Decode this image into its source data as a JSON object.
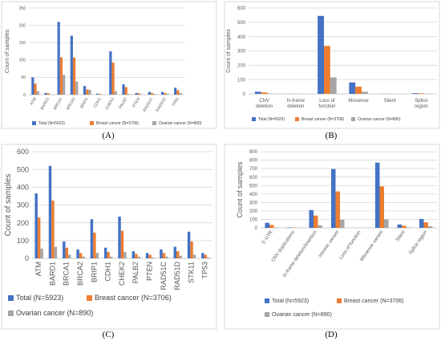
{
  "colors": {
    "total": "#4472C4",
    "breast": "#ED7D31",
    "ovarian": "#A5A5A5"
  },
  "chart_data": [
    {
      "id": "A",
      "type": "bar",
      "caption": "(A)",
      "ylabel": "Count of samples",
      "ylim": [
        0,
        250
      ],
      "yticks": [
        0,
        50,
        100,
        150,
        200,
        250
      ],
      "grid": true,
      "legend_placement": "bottom",
      "categories": [
        "ATM",
        "BARD1",
        "BRCA1",
        "BRCA2",
        "BRIP1",
        "CDH1",
        "CHEK2",
        "PALB2",
        "PTEN",
        "RAD51C",
        "RAD51D",
        "TP53"
      ],
      "series": [
        {
          "name": "Total (N=5923)",
          "values": [
            50,
            5,
            210,
            170,
            25,
            3,
            125,
            30,
            5,
            8,
            8,
            20
          ]
        },
        {
          "name": "Breast cancer (N=3706)",
          "values": [
            32,
            4,
            108,
            107,
            15,
            2,
            93,
            22,
            4,
            5,
            5,
            13
          ]
        },
        {
          "name": "Ovarian cancer (N=890)",
          "values": [
            10,
            1,
            57,
            38,
            14,
            0,
            10,
            2,
            1,
            2,
            3,
            5
          ]
        }
      ]
    },
    {
      "id": "B",
      "type": "bar",
      "caption": "(B)",
      "ylabel": "Count of samples",
      "ylim": [
        0,
        600
      ],
      "yticks": [
        0,
        100,
        200,
        300,
        400,
        500,
        600
      ],
      "grid": true,
      "legend_placement": "bottom",
      "categories": [
        "CNV deletion",
        "In-frame deletion",
        "Loss of function",
        "Missense",
        "Silent",
        "Splice region"
      ],
      "series": [
        {
          "name": "Total (N=5923)",
          "values": [
            15,
            1,
            545,
            80,
            1,
            5
          ]
        },
        {
          "name": "Breast cancer (N=3706)",
          "values": [
            10,
            1,
            335,
            50,
            1,
            4
          ]
        },
        {
          "name": "Ovarian cancer (N=890)",
          "values": [
            3,
            0,
            115,
            15,
            0,
            2
          ]
        }
      ]
    },
    {
      "id": "C",
      "type": "bar",
      "caption": "(C)",
      "ylabel": "Count of samples",
      "ylim": [
        0,
        600
      ],
      "yticks": [
        0,
        100,
        200,
        300,
        400,
        500,
        600
      ],
      "grid": true,
      "legend_placement": "bottom",
      "categories": [
        "ATM",
        "BARD1",
        "BRCA1",
        "BRCA2",
        "BRIP1",
        "CDH1",
        "CHEK2",
        "PALB2",
        "PTEN",
        "RAD51C",
        "RAD51D",
        "STK11",
        "TP53"
      ],
      "series": [
        {
          "name": "Total (N=5923)",
          "values": [
            365,
            520,
            95,
            50,
            220,
            60,
            235,
            40,
            30,
            50,
            65,
            150,
            30
          ]
        },
        {
          "name": "Breast cancer (N=3706)",
          "values": [
            230,
            325,
            60,
            30,
            145,
            35,
            155,
            25,
            20,
            30,
            40,
            95,
            20
          ]
        },
        {
          "name": "Ovarian cancer (N=890)",
          "values": [
            55,
            65,
            20,
            10,
            30,
            10,
            35,
            10,
            5,
            10,
            15,
            20,
            5
          ]
        }
      ]
    },
    {
      "id": "D",
      "type": "bar",
      "caption": "(D)",
      "ylabel": "Count of samples",
      "ylim": [
        0,
        900
      ],
      "yticks": [
        0,
        100,
        200,
        300,
        400,
        500,
        600,
        700,
        800,
        900
      ],
      "grid": true,
      "legend_placement": "bottom",
      "categories": [
        "5'-UTR",
        "CNV duplications",
        "In-frame deletion/insertion",
        "Intronic variant",
        "Loss of function",
        "Missense variant",
        "Silent",
        "Splice region"
      ],
      "series": [
        {
          "name": "Total (N=5923)",
          "values": [
            60,
            5,
            210,
            695,
            1,
            770,
            40,
            105
          ]
        },
        {
          "name": "Breast cancer (N=3706)",
          "values": [
            35,
            5,
            145,
            430,
            1,
            490,
            25,
            65
          ]
        },
        {
          "name": "Ovarian cancer (N=890)",
          "values": [
            5,
            2,
            30,
            95,
            0,
            100,
            5,
            20
          ]
        }
      ]
    }
  ]
}
